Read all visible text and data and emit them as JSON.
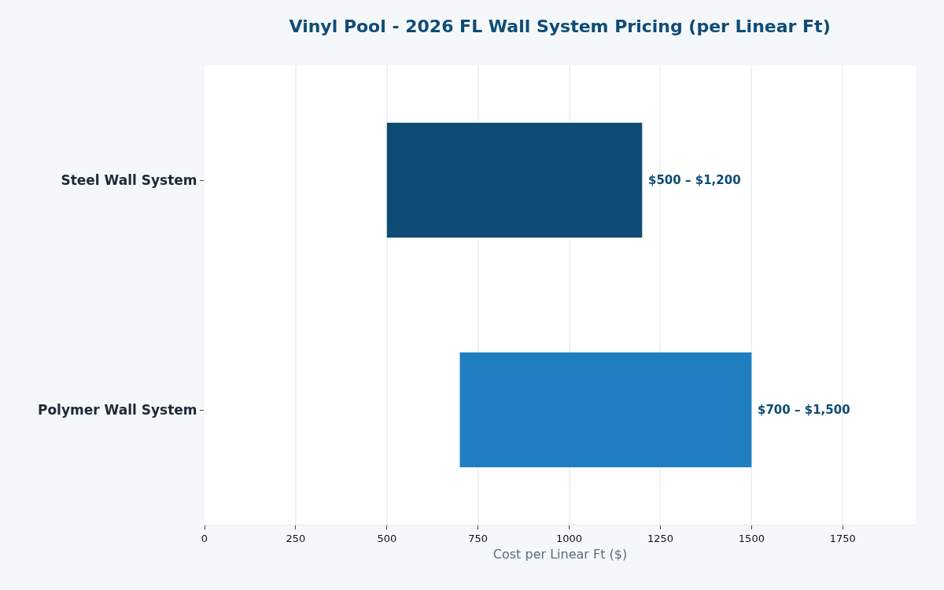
{
  "chart_data": {
    "type": "bar",
    "orientation": "horizontal",
    "title": "Vinyl Pool - 2026 FL Wall System Pricing (per Linear Ft)",
    "xlabel": "Cost per Linear Ft ($)",
    "categories": [
      "Steel Wall System",
      "Polymer Wall System"
    ],
    "base": [
      500,
      700
    ],
    "values": [
      700,
      800
    ],
    "colors": [
      "#0f4c75",
      "#1f7fc1"
    ],
    "annotations": [
      {
        "text": "$500 – $1,200",
        "x": 1200,
        "y": "Steel Wall System"
      },
      {
        "text": "$700 – $1,500",
        "x": 1500,
        "y": "Polymer Wall System"
      }
    ],
    "xlim": [
      0,
      1950
    ],
    "xticks": [
      0,
      250,
      500,
      750,
      1000,
      1250,
      1500,
      1750
    ],
    "grid": "x"
  }
}
